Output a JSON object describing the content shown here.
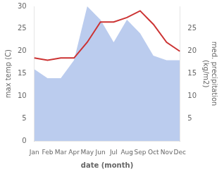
{
  "chart_data": {
    "type": "line",
    "categories": [
      "Jan",
      "Feb",
      "Mar",
      "Apr",
      "May",
      "Jun",
      "Jul",
      "Aug",
      "Sep",
      "Oct",
      "Nov",
      "Dec"
    ],
    "series": [
      {
        "type": "area",
        "axis": "y2",
        "color": "#bbccee",
        "values": [
          16,
          14,
          14,
          18,
          30,
          27,
          22,
          27,
          24,
          19,
          18,
          18
        ]
      },
      {
        "type": "line",
        "color": "#cc3333",
        "values": [
          18.5,
          18.0,
          18.5,
          18.5,
          22.0,
          26.5,
          26.5,
          27.5,
          29.0,
          26.0,
          22.0,
          20.0
        ]
      }
    ],
    "xlabel": "date (month)",
    "ylabel": "max temp (C)",
    "y2label": "med. precipitation\n(kg/m2)",
    "ylim": [
      0,
      30
    ],
    "yticks": [
      0,
      5,
      10,
      15,
      20,
      25,
      30
    ],
    "y2lim": [
      0,
      30
    ],
    "y2ticks": [
      5,
      10,
      15,
      20,
      25
    ],
    "grid": false
  }
}
